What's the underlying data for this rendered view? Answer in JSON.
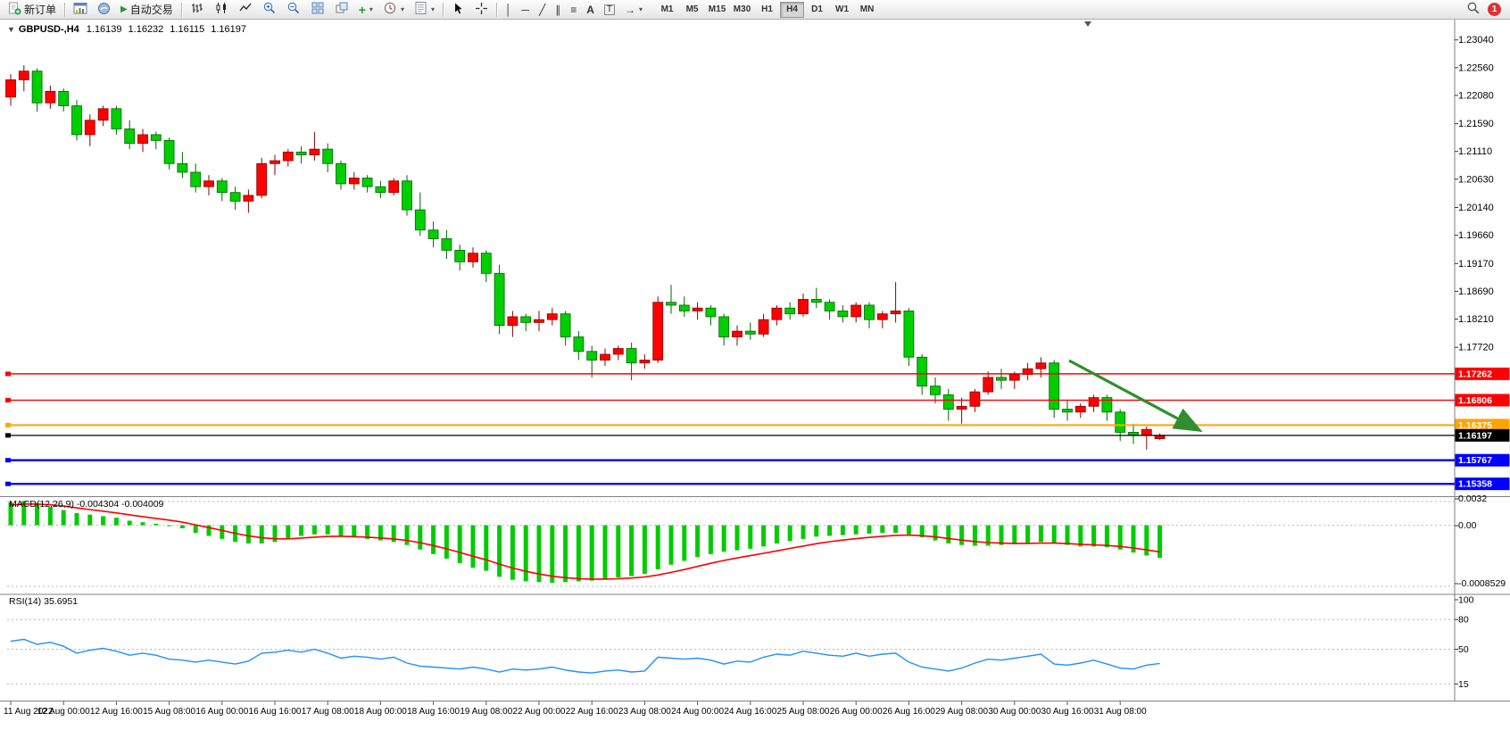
{
  "toolbar": {
    "new_order": "新订单",
    "autotrading": "自动交易",
    "timeframes": [
      "M1",
      "M5",
      "M15",
      "M30",
      "H1",
      "H4",
      "D1",
      "W1",
      "MN"
    ],
    "active_timeframe": "H4",
    "notification_count": "1"
  },
  "icons": {
    "one_click": "▼",
    "autotrading_play": "▶",
    "vertical_line": "│",
    "horizontal_line": "─",
    "trendline": "╱",
    "channel": "∥",
    "fibonacci": "≡",
    "text_tool": "A",
    "label_tool": "T",
    "arrows_tool": "→",
    "indicators_plus": "+"
  },
  "chart_header": {
    "symbol": "GBPUSD-,H4",
    "open": "1.16139",
    "high": "1.16232",
    "low": "1.16115",
    "close": "1.16197"
  },
  "indicators": {
    "macd_label": "MACD(12,26,9)",
    "macd_values": "-0.004304 -0.004009",
    "rsi_label": "RSI(14)",
    "rsi_value": "35.6951"
  },
  "axes": {
    "price_labels": [
      "1.23040",
      "1.22560",
      "1.22080",
      "1.21590",
      "1.21110",
      "1.20630",
      "1.20140",
      "1.19660",
      "1.19170",
      "1.18690",
      "1.18210",
      "1.17720"
    ],
    "macd_labels": [
      "0.0032",
      "0.00",
      "-0.0008529"
    ],
    "rsi_labels": [
      "100",
      "80",
      "50",
      "15"
    ],
    "time_labels": [
      "11 Aug 2022",
      "12 Aug 00:00",
      "12 Aug 16:00",
      "15 Aug 08:00",
      "16 Aug 00:00",
      "16 Aug 16:00",
      "17 Aug 08:00",
      "18 Aug 00:00",
      "18 Aug 16:00",
      "19 Aug 08:00",
      "22 Aug 00:00",
      "22 Aug 16:00",
      "23 Aug 08:00",
      "24 Aug 00:00",
      "24 Aug 16:00",
      "25 Aug 08:00",
      "26 Aug 00:00",
      "26 Aug 16:00",
      "29 Aug 08:00",
      "30 Aug 00:00",
      "30 Aug 16:00",
      "31 Aug 08:00"
    ]
  },
  "colors": {
    "bull": "#FF0000",
    "bear": "#00CE00",
    "bull_border": "#8A0000",
    "bear_border": "#006400",
    "macd_histogram": "#00CC00",
    "macd_signal": "#FF0000",
    "rsi_line": "#1E90FF",
    "arrow": "#2F8F2F",
    "grid": "#B8B8B8",
    "panel_border": "#808080"
  },
  "chart_data": [
    {
      "type": "candlestick",
      "title": "GBPUSD- H4",
      "y_range": [
        1.1516,
        1.2336
      ],
      "ohlc": [
        [
          1.2205,
          1.2245,
          1.219,
          1.2235
        ],
        [
          1.2235,
          1.226,
          1.2215,
          1.225
        ],
        [
          1.225,
          1.2255,
          1.218,
          1.2195
        ],
        [
          1.2195,
          1.2225,
          1.2185,
          1.2215
        ],
        [
          1.2215,
          1.222,
          1.218,
          1.219
        ],
        [
          1.219,
          1.22,
          1.213,
          1.214
        ],
        [
          1.214,
          1.2175,
          1.212,
          1.2165
        ],
        [
          1.2165,
          1.219,
          1.2155,
          1.2185
        ],
        [
          1.2185,
          1.219,
          1.214,
          1.215
        ],
        [
          1.215,
          1.2165,
          1.2115,
          1.2125
        ],
        [
          1.2125,
          1.215,
          1.211,
          1.214
        ],
        [
          1.214,
          1.2145,
          1.2115,
          1.213
        ],
        [
          1.213,
          1.2135,
          1.208,
          1.209
        ],
        [
          1.209,
          1.211,
          1.2065,
          1.2075
        ],
        [
          1.2075,
          1.209,
          1.204,
          1.205
        ],
        [
          1.205,
          1.207,
          1.2035,
          1.206
        ],
        [
          1.206,
          1.2065,
          1.2025,
          1.204
        ],
        [
          1.204,
          1.205,
          1.201,
          1.2025
        ],
        [
          1.2025,
          1.2045,
          1.2005,
          1.2035
        ],
        [
          1.2035,
          1.21,
          1.203,
          1.209
        ],
        [
          1.209,
          1.2105,
          1.207,
          1.2095
        ],
        [
          1.2095,
          1.2115,
          1.2085,
          1.211
        ],
        [
          1.211,
          1.212,
          1.209,
          1.2105
        ],
        [
          1.2105,
          1.2145,
          1.2095,
          1.2115
        ],
        [
          1.2115,
          1.2125,
          1.2075,
          1.209
        ],
        [
          1.209,
          1.2095,
          1.2045,
          1.2055
        ],
        [
          1.2055,
          1.2075,
          1.2045,
          1.2065
        ],
        [
          1.2065,
          1.207,
          1.204,
          1.205
        ],
        [
          1.205,
          1.206,
          1.203,
          1.204
        ],
        [
          1.204,
          1.2065,
          1.2035,
          1.206
        ],
        [
          1.206,
          1.207,
          1.2,
          1.201
        ],
        [
          1.201,
          1.204,
          1.1965,
          1.1975
        ],
        [
          1.1975,
          1.199,
          1.1945,
          1.196
        ],
        [
          1.196,
          1.1975,
          1.1925,
          1.194
        ],
        [
          1.194,
          1.195,
          1.1905,
          1.192
        ],
        [
          1.192,
          1.1945,
          1.191,
          1.1935
        ],
        [
          1.1935,
          1.194,
          1.1885,
          1.19
        ],
        [
          1.19,
          1.1915,
          1.1795,
          1.181
        ],
        [
          1.181,
          1.1835,
          1.179,
          1.1825
        ],
        [
          1.1825,
          1.183,
          1.18,
          1.1815
        ],
        [
          1.1815,
          1.1835,
          1.18,
          1.182
        ],
        [
          1.182,
          1.184,
          1.181,
          1.183
        ],
        [
          1.183,
          1.1835,
          1.1775,
          1.179
        ],
        [
          1.179,
          1.18,
          1.175,
          1.1765
        ],
        [
          1.1765,
          1.1775,
          1.172,
          1.175
        ],
        [
          1.175,
          1.177,
          1.174,
          1.176
        ],
        [
          1.176,
          1.1775,
          1.175,
          1.177
        ],
        [
          1.177,
          1.178,
          1.1715,
          1.1745
        ],
        [
          1.1745,
          1.176,
          1.1735,
          1.175
        ],
        [
          1.175,
          1.186,
          1.1745,
          1.185
        ],
        [
          1.185,
          1.188,
          1.183,
          1.1845
        ],
        [
          1.1845,
          1.186,
          1.1825,
          1.1835
        ],
        [
          1.1835,
          1.185,
          1.182,
          1.184
        ],
        [
          1.184,
          1.1845,
          1.181,
          1.1825
        ],
        [
          1.1825,
          1.183,
          1.1775,
          1.179
        ],
        [
          1.179,
          1.181,
          1.1775,
          1.18
        ],
        [
          1.18,
          1.1815,
          1.1785,
          1.1795
        ],
        [
          1.1795,
          1.183,
          1.179,
          1.182
        ],
        [
          1.182,
          1.1845,
          1.181,
          1.184
        ],
        [
          1.184,
          1.185,
          1.182,
          1.183
        ],
        [
          1.183,
          1.1865,
          1.1825,
          1.1855
        ],
        [
          1.1855,
          1.1875,
          1.184,
          1.185
        ],
        [
          1.185,
          1.1855,
          1.182,
          1.1835
        ],
        [
          1.1835,
          1.1845,
          1.1815,
          1.1825
        ],
        [
          1.1825,
          1.185,
          1.1815,
          1.1845
        ],
        [
          1.1845,
          1.185,
          1.1805,
          1.182
        ],
        [
          1.182,
          1.1835,
          1.1805,
          1.183
        ],
        [
          1.183,
          1.1885,
          1.1815,
          1.1835
        ],
        [
          1.1835,
          1.184,
          1.174,
          1.1755
        ],
        [
          1.1755,
          1.176,
          1.169,
          1.1705
        ],
        [
          1.1705,
          1.172,
          1.1675,
          1.169
        ],
        [
          1.169,
          1.17,
          1.1645,
          1.1665
        ],
        [
          1.1665,
          1.1685,
          1.164,
          1.167
        ],
        [
          1.167,
          1.17,
          1.166,
          1.1695
        ],
        [
          1.1695,
          1.173,
          1.169,
          1.172
        ],
        [
          1.172,
          1.1735,
          1.17,
          1.1715
        ],
        [
          1.1715,
          1.173,
          1.17,
          1.1725
        ],
        [
          1.1725,
          1.1745,
          1.1715,
          1.1735
        ],
        [
          1.1735,
          1.1755,
          1.172,
          1.1745
        ],
        [
          1.1745,
          1.175,
          1.165,
          1.1665
        ],
        [
          1.1665,
          1.168,
          1.1645,
          1.166
        ],
        [
          1.166,
          1.1675,
          1.165,
          1.167
        ],
        [
          1.167,
          1.169,
          1.166,
          1.1685
        ],
        [
          1.1685,
          1.169,
          1.1645,
          1.166
        ],
        [
          1.166,
          1.1665,
          1.161,
          1.1625
        ],
        [
          1.1625,
          1.164,
          1.1605,
          1.162
        ],
        [
          1.162,
          1.1635,
          1.1595,
          1.163
        ],
        [
          1.16139,
          1.16232,
          1.16115,
          1.16197
        ]
      ],
      "hlines": [
        {
          "price": 1.17262,
          "label": "1.17262",
          "color": "#FF0000",
          "width": 1.4
        },
        {
          "price": 1.16806,
          "label": "1.16806",
          "color": "#FF0000",
          "width": 1.4
        },
        {
          "price": 1.16375,
          "label": "1.16375",
          "color": "#FFA500",
          "width": 2
        },
        {
          "price": 1.16197,
          "label": "1.16197",
          "color": "#000000",
          "width": 1.2
        },
        {
          "price": 1.15767,
          "label": "1.15767",
          "color": "#0000FF",
          "width": 2.4
        },
        {
          "price": 1.15358,
          "label": "1.15358",
          "color": "#0000FF",
          "width": 2.4
        }
      ],
      "arrow": {
        "from": [
          1198,
          404
        ],
        "to": [
          1342,
          481
        ]
      }
    },
    {
      "type": "bar",
      "title": "MACD(12,26,9)",
      "y_range": [
        -0.009,
        0.0036
      ],
      "last_values": [
        -0.004304,
        -0.004009
      ],
      "values": [
        0.003,
        0.0032,
        0.0028,
        0.0024,
        0.002,
        0.0016,
        0.0014,
        0.0012,
        0.001,
        0.0006,
        0.0004,
        0.0002,
        0.0,
        -0.0004,
        -0.001,
        -0.0014,
        -0.0018,
        -0.0022,
        -0.0024,
        -0.0024,
        -0.0022,
        -0.0018,
        -0.0014,
        -0.0012,
        -0.0012,
        -0.0014,
        -0.0016,
        -0.0018,
        -0.002,
        -0.0022,
        -0.0026,
        -0.0032,
        -0.0038,
        -0.0044,
        -0.005,
        -0.0056,
        -0.006,
        -0.0068,
        -0.0072,
        -0.0074,
        -0.0075,
        -0.0076,
        -0.0075,
        -0.0074,
        -0.0073,
        -0.0071,
        -0.0069,
        -0.0067,
        -0.0064,
        -0.0058,
        -0.0052,
        -0.0047,
        -0.0042,
        -0.0038,
        -0.0035,
        -0.0033,
        -0.0031,
        -0.0028,
        -0.0024,
        -0.0021,
        -0.0018,
        -0.0015,
        -0.0014,
        -0.0013,
        -0.0012,
        -0.0011,
        -0.001,
        -0.001,
        -0.0012,
        -0.0016,
        -0.002,
        -0.0024,
        -0.0026,
        -0.0027,
        -0.0027,
        -0.0026,
        -0.0025,
        -0.0024,
        -0.0022,
        -0.0024,
        -0.0026,
        -0.0028,
        -0.0028,
        -0.0029,
        -0.0032,
        -0.0036,
        -0.004,
        -0.0043
      ]
    },
    {
      "type": "line",
      "title": "RSI(14)",
      "y_range": [
        0,
        100
      ],
      "levels": [
        80,
        50,
        15
      ],
      "last_value": 35.6951,
      "values": [
        58,
        60,
        55,
        57,
        53,
        46,
        49,
        51,
        48,
        44,
        46,
        44,
        40,
        39,
        37,
        39,
        37,
        35,
        38,
        46,
        47,
        49,
        47,
        50,
        46,
        41,
        43,
        42,
        40,
        42,
        36,
        33,
        32,
        31,
        30,
        32,
        30,
        27,
        30,
        29,
        30,
        32,
        29,
        27,
        26,
        28,
        29,
        27,
        28,
        42,
        41,
        40,
        41,
        39,
        35,
        38,
        37,
        42,
        45,
        44,
        48,
        46,
        44,
        43,
        46,
        43,
        45,
        46,
        37,
        32,
        30,
        28,
        31,
        36,
        40,
        39,
        41,
        43,
        45,
        35,
        34,
        36,
        39,
        35,
        31,
        30,
        34,
        35.7
      ]
    }
  ]
}
